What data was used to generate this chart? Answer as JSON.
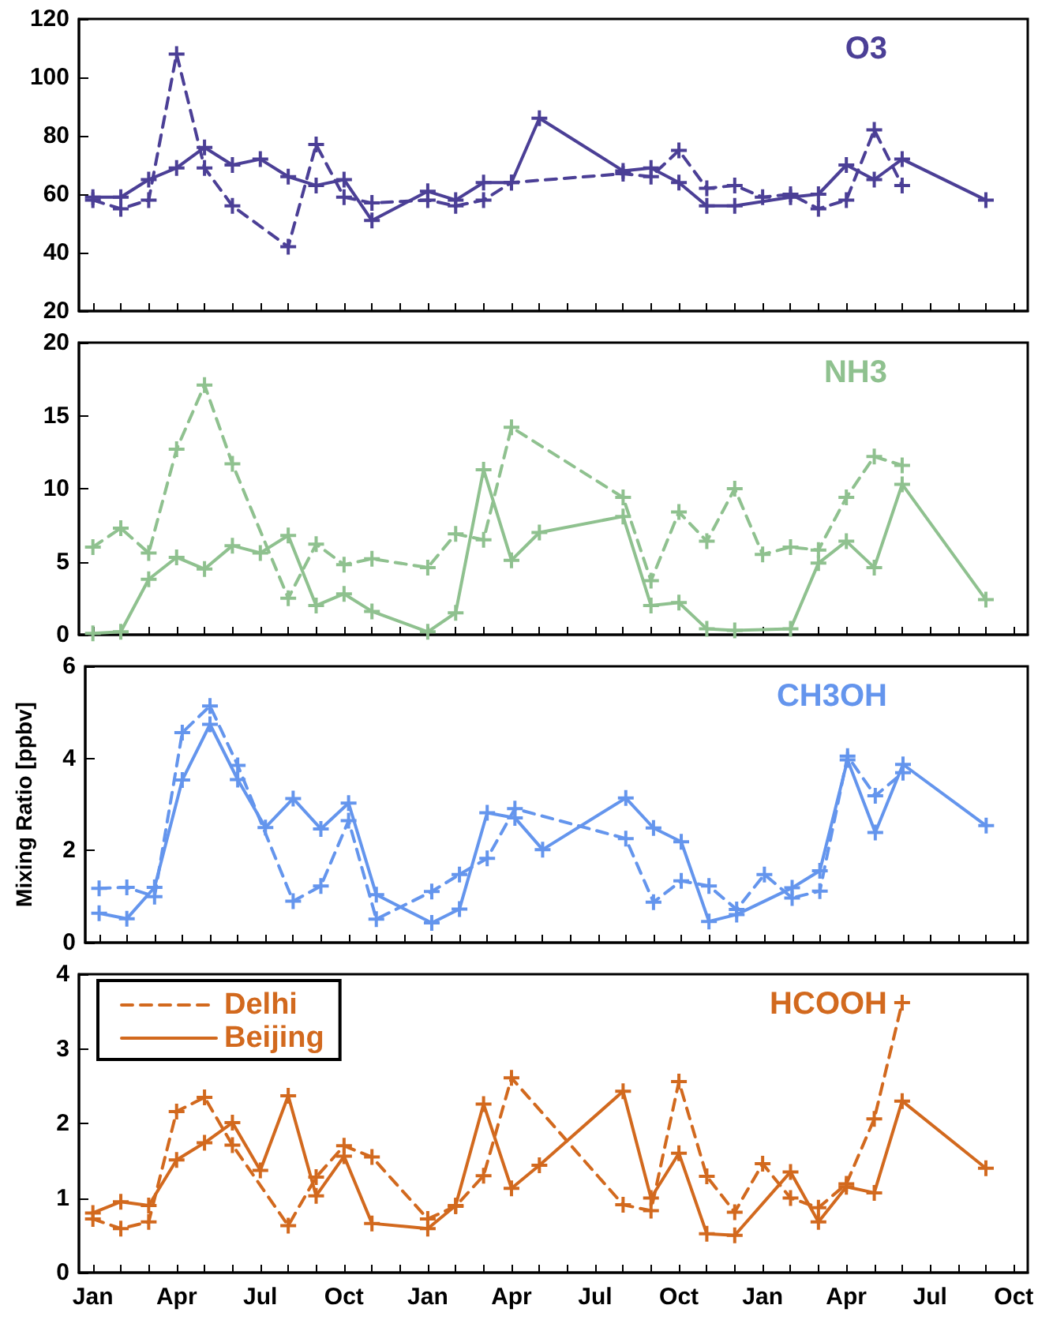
{
  "chart_data": [
    {
      "type": "line",
      "title": "O3",
      "marker": "cross",
      "grid": false,
      "tick_labels": "y",
      "legend": false,
      "categories": [
        null,
        null,
        null,
        null,
        null,
        null,
        null,
        null,
        null,
        null,
        null,
        null,
        null,
        null,
        null,
        null,
        null,
        null,
        null,
        null,
        null,
        null,
        null,
        null,
        null,
        null,
        null,
        null,
        null,
        null,
        null,
        null,
        null,
        null
      ],
      "ylim": [
        20,
        120
      ],
      "yticks": [
        20,
        40,
        60,
        80,
        100,
        120
      ],
      "series": [
        {
          "color": "#4b3f96",
          "line_style": "dashed",
          "values": [
            58,
            55,
            58,
            108,
            69,
            56,
            null,
            42,
            77,
            59,
            57,
            null,
            58,
            56,
            58,
            64,
            null,
            null,
            null,
            67,
            66,
            75,
            62,
            63,
            59,
            60,
            55,
            58,
            82,
            63,
            null,
            null,
            null,
            null
          ]
        },
        {
          "color": "#4b3f96",
          "line_style": "solid",
          "values": [
            59,
            59,
            65,
            69,
            76,
            70,
            72,
            66,
            63,
            65,
            51,
            null,
            61,
            58,
            64,
            64,
            86,
            null,
            null,
            68,
            69,
            64,
            56,
            56,
            null,
            59,
            60,
            70,
            65,
            72,
            null,
            null,
            58,
            null
          ]
        }
      ]
    },
    {
      "type": "line",
      "title": "NH3",
      "marker": "cross",
      "grid": false,
      "tick_labels": "y",
      "legend": false,
      "categories": [
        null,
        null,
        null,
        null,
        null,
        null,
        null,
        null,
        null,
        null,
        null,
        null,
        null,
        null,
        null,
        null,
        null,
        null,
        null,
        null,
        null,
        null,
        null,
        null,
        null,
        null,
        null,
        null,
        null,
        null,
        null,
        null,
        null,
        null
      ],
      "ylim": [
        0,
        20
      ],
      "yticks": [
        0,
        5,
        10,
        15,
        20
      ],
      "series": [
        {
          "color": "#8fc18f",
          "line_style": "dashed",
          "values": [
            6.0,
            7.3,
            5.6,
            12.7,
            17.1,
            11.7,
            null,
            2.5,
            6.2,
            4.8,
            5.2,
            null,
            4.6,
            6.9,
            6.5,
            14.2,
            null,
            null,
            null,
            9.4,
            3.7,
            8.4,
            6.4,
            10.0,
            5.5,
            6.0,
            5.8,
            9.4,
            12.2,
            11.6,
            null,
            null,
            null,
            null
          ]
        },
        {
          "color": "#8fc18f",
          "line_style": "solid",
          "values": [
            0.1,
            0.2,
            3.8,
            5.3,
            4.5,
            6.1,
            5.6,
            6.8,
            2.0,
            2.8,
            1.6,
            null,
            0.2,
            1.5,
            11.3,
            5.1,
            7.0,
            null,
            null,
            8.1,
            2.0,
            2.2,
            0.4,
            0.3,
            null,
            0.4,
            4.9,
            6.4,
            4.6,
            10.3,
            null,
            null,
            2.4,
            null
          ]
        }
      ]
    },
    {
      "type": "line",
      "title": "CH3OH",
      "ylabel": "Mixing Ratio [ppbv]",
      "marker": "cross",
      "grid": false,
      "tick_labels": "y",
      "legend": false,
      "categories": [
        null,
        null,
        null,
        null,
        null,
        null,
        null,
        null,
        null,
        null,
        null,
        null,
        null,
        null,
        null,
        null,
        null,
        null,
        null,
        null,
        null,
        null,
        null,
        null,
        null,
        null,
        null,
        null,
        null,
        null,
        null,
        null,
        null,
        null
      ],
      "ylim": [
        0,
        6
      ],
      "yticks": [
        0,
        2,
        4,
        6
      ],
      "series": [
        {
          "color": "#6495ed",
          "line_style": "dashed",
          "values": [
            1.18,
            1.2,
            1.0,
            4.56,
            5.14,
            3.85,
            null,
            0.9,
            1.23,
            2.65,
            0.51,
            null,
            1.11,
            1.48,
            1.83,
            2.91,
            null,
            null,
            null,
            2.26,
            0.88,
            1.34,
            1.23,
            0.72,
            1.48,
            0.97,
            1.12,
            4.05,
            3.19,
            3.69,
            null,
            null,
            null,
            null
          ]
        },
        {
          "color": "#6495ed",
          "line_style": "solid",
          "values": [
            0.64,
            0.52,
            1.2,
            3.53,
            4.74,
            3.54,
            2.5,
            3.13,
            2.47,
            3.03,
            1.04,
            null,
            0.43,
            0.73,
            2.82,
            2.71,
            2.02,
            null,
            null,
            3.14,
            2.49,
            2.19,
            0.46,
            0.61,
            null,
            1.19,
            1.56,
            3.97,
            2.39,
            3.87,
            null,
            null,
            2.54,
            null
          ]
        }
      ]
    },
    {
      "type": "line",
      "title": "HCOOH",
      "marker": "cross",
      "grid": false,
      "legend": "top left",
      "categories": [
        "Jan",
        null,
        null,
        "Apr",
        null,
        null,
        "Jul",
        null,
        null,
        "Oct",
        null,
        null,
        "Jan",
        null,
        null,
        "Apr",
        null,
        null,
        "Jul",
        null,
        null,
        "Oct",
        null,
        null,
        "Jan",
        null,
        null,
        "Apr",
        null,
        null,
        "Jul",
        null,
        null,
        "Oct"
      ],
      "ylim": [
        0,
        4
      ],
      "yticks": [
        0,
        1,
        2,
        3,
        4
      ],
      "series": [
        {
          "name": "Delhi",
          "color": "#d2691e",
          "line_style": "dashed",
          "values": [
            0.72,
            0.59,
            0.68,
            2.16,
            2.35,
            1.71,
            null,
            0.63,
            1.28,
            1.7,
            1.55,
            null,
            0.72,
            0.89,
            1.3,
            2.61,
            null,
            null,
            null,
            0.91,
            0.83,
            2.56,
            1.29,
            0.81,
            1.46,
            1.0,
            0.87,
            1.19,
            2.06,
            3.62,
            null,
            null,
            null,
            null
          ]
        },
        {
          "name": "Beijing",
          "color": "#d2691e",
          "line_style": "solid",
          "values": [
            0.8,
            0.95,
            0.9,
            1.51,
            1.74,
            2.01,
            1.37,
            2.37,
            1.03,
            1.56,
            0.66,
            null,
            0.59,
            0.9,
            2.26,
            1.13,
            1.44,
            null,
            null,
            2.43,
            1.0,
            1.6,
            0.52,
            0.5,
            null,
            1.35,
            0.68,
            1.15,
            1.07,
            2.3,
            null,
            null,
            1.4,
            null
          ]
        }
      ]
    }
  ]
}
